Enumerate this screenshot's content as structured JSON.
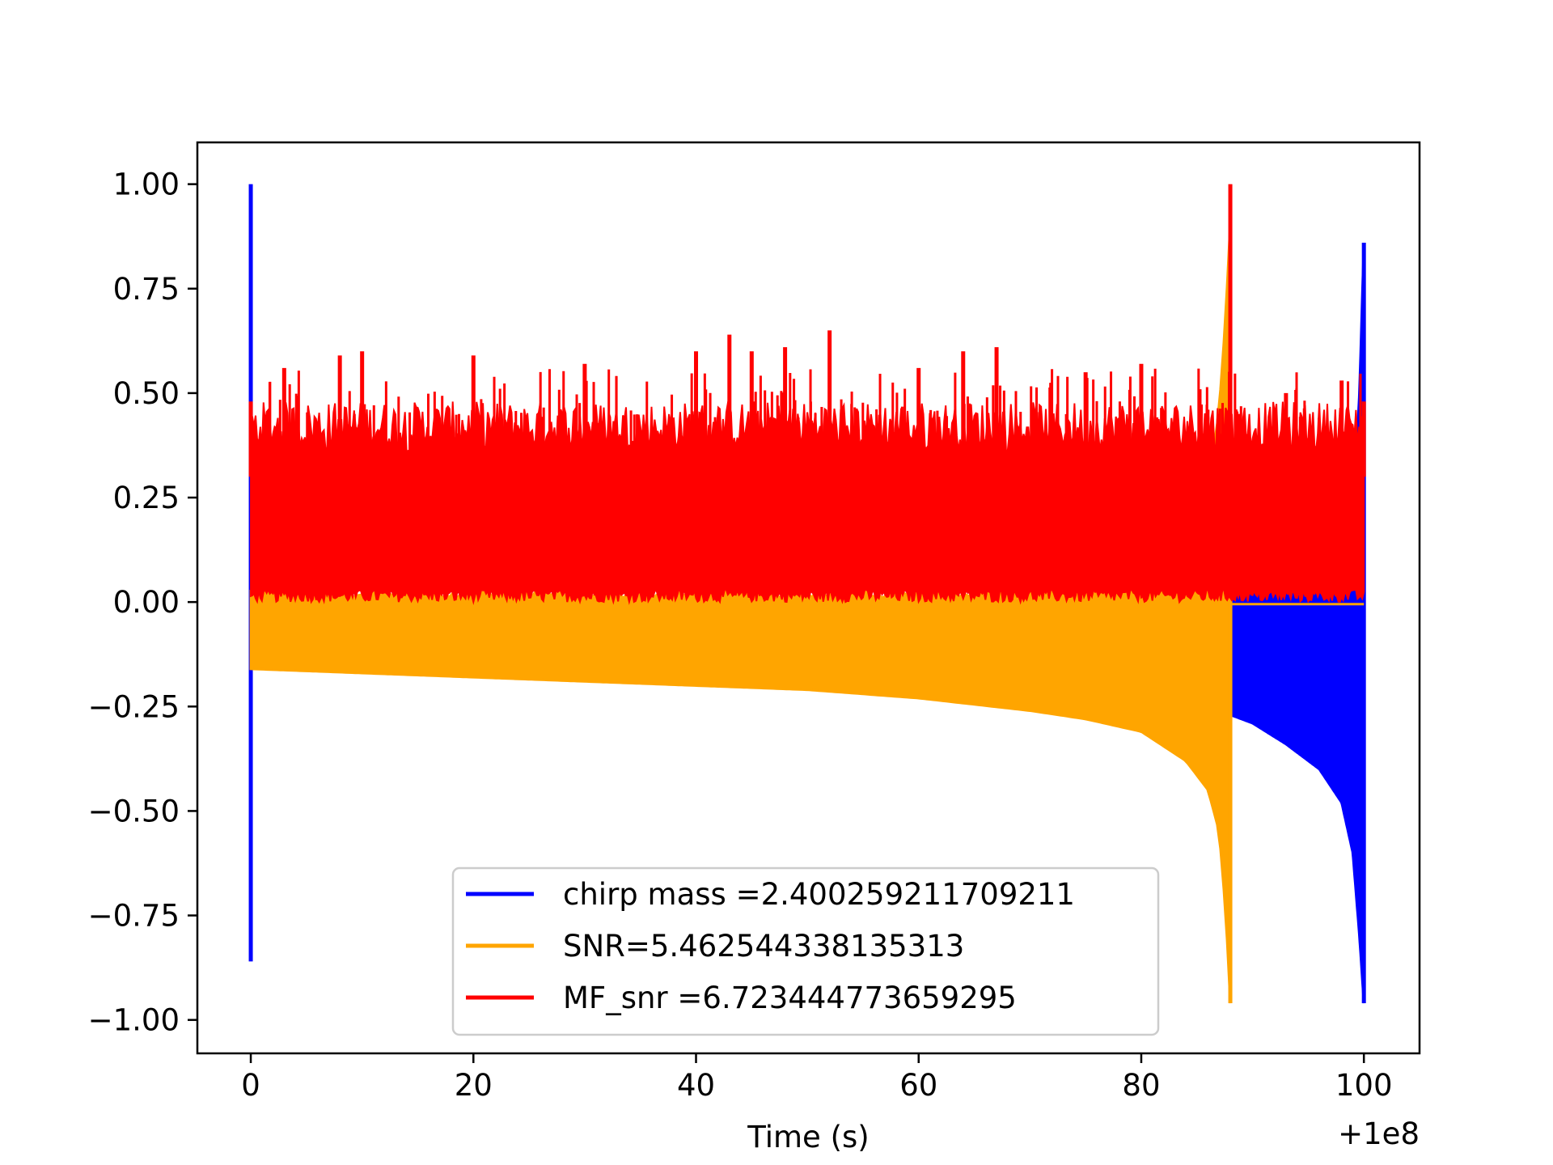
{
  "chart_data": {
    "type": "line",
    "xlabel": "Time (s)",
    "x_offset_label": "+1e8",
    "xlim": [
      -4.8,
      105
    ],
    "ylim": [
      -1.08,
      1.1
    ],
    "x_ticks": [
      0,
      20,
      40,
      60,
      80,
      100
    ],
    "x_tick_labels": [
      "0",
      "20",
      "40",
      "60",
      "80",
      "100"
    ],
    "y_ticks": [
      1.0,
      0.75,
      0.5,
      0.25,
      0.0,
      -0.25,
      -0.5,
      -0.75,
      -1.0
    ],
    "y_tick_labels": [
      "1.00",
      "0.75",
      "0.50",
      "0.25",
      "0.00",
      "−0.25",
      "−0.50",
      "−0.75",
      "−1.00"
    ],
    "grid": false,
    "legend_position": "lower-center",
    "series": [
      {
        "name": "chirp mass =2.400259211709211",
        "color": "#0000ff",
        "description_points": {
          "x": [
            0,
            0.05,
            0.1,
            88,
            90,
            93,
            96,
            98,
            99,
            99.6,
            100
          ],
          "upper": [
            1.0,
            0.8,
            0.3,
            0.01,
            0.02,
            0.02,
            0.03,
            0.06,
            0.2,
            0.5,
            0.86
          ],
          "lower": [
            -0.86,
            -0.5,
            -0.17,
            -0.27,
            -0.29,
            -0.34,
            -0.4,
            -0.48,
            -0.6,
            -0.8,
            -0.96
          ]
        }
      },
      {
        "name": "SNR=5.462544338135313",
        "color": "#ffa500",
        "description_points": {
          "x": [
            0,
            10,
            20,
            30,
            40,
            50,
            60,
            70,
            75,
            80,
            84,
            86,
            87,
            87.6,
            88
          ],
          "upper": [
            0.02,
            0.02,
            0.02,
            0.02,
            0.02,
            0.02,
            0.02,
            0.02,
            0.03,
            0.06,
            0.15,
            0.3,
            0.45,
            0.7,
            0.9
          ],
          "lower": [
            -0.16,
            -0.17,
            -0.18,
            -0.19,
            -0.2,
            -0.21,
            -0.23,
            -0.26,
            -0.28,
            -0.31,
            -0.38,
            -0.45,
            -0.55,
            -0.75,
            -0.96
          ]
        }
      },
      {
        "name": "MF_snr =6.723444773659295",
        "color": "#ff0000",
        "band": {
          "x": [
            0,
            100
          ],
          "lower": 0.0,
          "upper": 0.45
        },
        "peaks": {
          "x": [
            0,
            3,
            8,
            10,
            20,
            30,
            40,
            43,
            45,
            48,
            52,
            60,
            64,
            67,
            75,
            80,
            88,
            93,
            98,
            100
          ],
          "y": [
            0.48,
            0.56,
            0.59,
            0.6,
            0.59,
            0.57,
            0.6,
            0.64,
            0.6,
            0.61,
            0.65,
            0.56,
            0.6,
            0.61,
            0.55,
            0.57,
            1.0,
            0.5,
            0.53,
            0.48
          ]
        }
      }
    ]
  }
}
